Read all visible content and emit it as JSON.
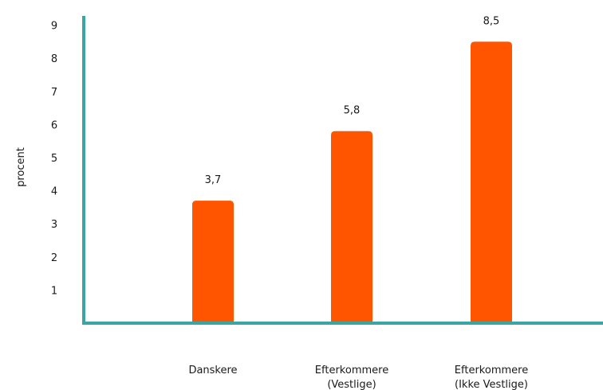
{
  "chart_data": {
    "type": "bar",
    "ylabel": "procent",
    "categories": [
      [
        "Danskere"
      ],
      [
        "Efterkommere",
        "(Vestlige)"
      ],
      [
        "Efterkommere",
        "(Ikke Vestlige)"
      ]
    ],
    "values": [
      3.7,
      5.8,
      8.5
    ],
    "data_labels": [
      "3,7",
      "5,8",
      "8,5"
    ],
    "yticks": [
      1,
      2,
      3,
      4,
      5,
      6,
      7,
      8,
      9
    ],
    "ylim": [
      0,
      9.8
    ],
    "grid": false,
    "bar_color": "#FF5500",
    "axis_color": "#3AA6A4"
  }
}
